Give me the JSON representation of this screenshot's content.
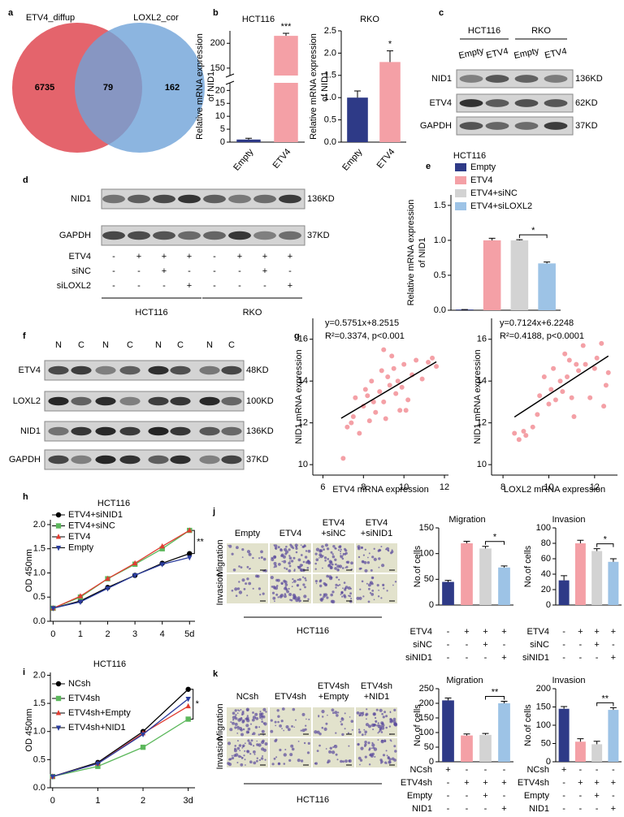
{
  "letters": [
    "a",
    "b",
    "c",
    "d",
    "e",
    "f",
    "g",
    "h",
    "i",
    "j",
    "k"
  ],
  "venn": {
    "sets": [
      "ETV4_diffup",
      "LOXL2_cor"
    ],
    "counts": [
      6735,
      79,
      162
    ]
  },
  "blots": [
    {
      "cell_lines": [
        "HCT116",
        "RKO"
      ],
      "lanes": [
        "Empty",
        "ETV4",
        "Empty",
        "ETV4"
      ],
      "proteins": [
        "NID1",
        "ETV4",
        "GAPDH"
      ],
      "sizes": [
        "136KD",
        "62KD",
        "37KD"
      ]
    },
    {
      "proteins": [
        "NID1",
        "GAPDH"
      ],
      "sizes": [
        "136KD",
        "37KD"
      ],
      "conditions": [
        {
          "name": "ETV4",
          "signs": [
            "-",
            "+",
            "+",
            "+",
            "-",
            "+",
            "+",
            "+"
          ]
        },
        {
          "name": "siNC",
          "signs": [
            "-",
            "-",
            "+",
            "-",
            "-",
            "-",
            "+",
            "-"
          ]
        },
        {
          "name": "siLOXL2",
          "signs": [
            "-",
            "-",
            "-",
            "+",
            "-",
            "-",
            "-",
            "+"
          ]
        }
      ],
      "cell_lines": [
        "HCT116",
        "RKO"
      ]
    },
    {
      "lanes": [
        "N",
        "C",
        "N",
        "C",
        "N",
        "C",
        "N",
        "C"
      ],
      "proteins": [
        "ETV4",
        "LOXL2",
        "NID1",
        "GAPDH"
      ],
      "sizes": [
        "48KD",
        "100KD",
        "136KD",
        "37KD"
      ]
    }
  ],
  "micrographs": [
    {
      "columns": [
        [
          "Empty"
        ],
        [
          "ETV4"
        ],
        [
          "ETV4",
          "+siNC"
        ],
        [
          "ETV4",
          "+siNID1"
        ]
      ],
      "rows": [
        "Migration",
        "Invasion"
      ],
      "cell_line": "HCT116"
    },
    {
      "columns": [
        [
          "NCsh"
        ],
        [
          "ETV4sh"
        ],
        [
          "ETV4sh",
          "+Empty"
        ],
        [
          "ETV4sh",
          "+NID1"
        ]
      ],
      "rows": [
        "Migration",
        "Invasion"
      ],
      "cell_line": "HCT116"
    }
  ],
  "chart_data": [
    {
      "type": "bar",
      "title": "HCT116",
      "ylabel": [
        "Relative mRNA expression",
        "of NID1"
      ],
      "categories": [
        "Empty",
        "ETV4"
      ],
      "values": [
        1,
        215
      ],
      "errors": [
        0.5,
        5
      ],
      "colors": [
        "#2e3a87",
        "#f4a0a6"
      ],
      "ylim": [
        0,
        225
      ],
      "yticks": [
        0,
        5,
        10,
        15,
        20,
        150,
        200
      ],
      "axis_break": [
        22,
        140
      ],
      "significance": [
        {
          "label": "***",
          "bars": [
            1
          ]
        }
      ]
    },
    {
      "type": "bar",
      "title": "RKO",
      "ylabel": [
        "Relative mRNA expression",
        "of NID1"
      ],
      "categories": [
        "Empty",
        "ETV4"
      ],
      "values": [
        1.0,
        1.8
      ],
      "errors": [
        0.15,
        0.25
      ],
      "colors": [
        "#2e3a87",
        "#f4a0a6"
      ],
      "ylim": [
        0,
        2.5
      ],
      "yticks": [
        {
          "value": 0,
          "label": "0.0"
        },
        0.5,
        {
          "value": 1,
          "label": "1.0"
        },
        1.5,
        {
          "value": 2,
          "label": "2.0"
        },
        2.5
      ],
      "significance": [
        {
          "label": "*",
          "bars": [
            1
          ]
        }
      ]
    },
    {
      "type": "bar",
      "title": "HCT116",
      "ylabel": [
        "Relative mRNA expression",
        "of NID1"
      ],
      "categories": [
        "Empty",
        "ETV4",
        "ETV4+siNC",
        "ETV4+siLOXL2"
      ],
      "legend": true,
      "values": [
        0.01,
        1.0,
        1.0,
        0.67
      ],
      "errors": [
        0,
        0.03,
        0.01,
        0.02
      ],
      "colors": [
        "#2e3a87",
        "#f4a0a6",
        "#d3d3d3",
        "#9dc3e6"
      ],
      "ylim": [
        0,
        1.65
      ],
      "yticks": [
        {
          "value": 0,
          "label": "0.0"
        },
        0.5,
        {
          "value": 1,
          "label": "1.0"
        },
        1.5
      ],
      "significance": [
        {
          "label": "*",
          "bars": [
            2,
            3
          ]
        }
      ]
    },
    {
      "type": "scatter",
      "xlabel": "ETV4 mRNA expression",
      "ylabel": "NID1 mRNA expression",
      "annotations": [
        "y=0.5751x+8.2515",
        "R²=0.3374, p<0.001"
      ],
      "x": [
        7.0,
        7.2,
        7.5,
        7.6,
        7.8,
        8.0,
        8.1,
        8.3,
        8.4,
        8.5,
        8.6,
        8.8,
        8.9,
        9.0,
        9.1,
        9.2,
        9.3,
        9.4,
        9.5,
        9.6,
        9.7,
        9.8,
        9.9,
        10.0,
        10.2,
        10.4,
        10.6,
        10.9,
        11.2,
        11.4,
        11.6,
        8.2,
        9.0,
        7.4,
        10.1
      ],
      "values": [
        10.3,
        11.8,
        12.3,
        13.2,
        11.5,
        12.8,
        13.6,
        12.1,
        14.0,
        13.0,
        12.5,
        13.5,
        14.5,
        13.0,
        12.2,
        14.2,
        13.8,
        15.2,
        14.6,
        13.4,
        14.0,
        12.6,
        13.7,
        14.8,
        13.1,
        14.3,
        15.0,
        14.1,
        14.9,
        15.1,
        14.7,
        13.3,
        15.5,
        12.0,
        12.6
      ],
      "fit_x": [
        6.9,
        11.6
      ],
      "fit_y": [
        12.22,
        14.92
      ],
      "color": "#f4a0a6",
      "xlim": [
        5.5,
        12.2
      ],
      "xticks": [
        6,
        8,
        10,
        12
      ],
      "ylim": [
        9.5,
        17
      ],
      "yticks": [
        10,
        12,
        14,
        16
      ]
    },
    {
      "type": "scatter",
      "xlabel": "LOXL2 mRNA expression",
      "ylabel": "NID1 mRNA expression",
      "annotations": [
        "y=0.7124x+6.2248",
        "R²=0.4188, p<0.0001"
      ],
      "x": [
        8.5,
        8.7,
        8.9,
        9.0,
        9.3,
        9.5,
        9.6,
        9.8,
        10.0,
        10.1,
        10.2,
        10.3,
        10.5,
        10.6,
        10.7,
        10.8,
        11.0,
        11.1,
        11.2,
        11.3,
        11.5,
        11.6,
        11.8,
        12.0,
        12.1,
        12.3,
        12.5,
        12.6,
        12.4,
        10.9
      ],
      "values": [
        11.5,
        11.2,
        11.6,
        11.4,
        11.8,
        12.4,
        13.3,
        14.2,
        12.9,
        13.6,
        14.6,
        13.1,
        14.0,
        13.5,
        15.3,
        14.2,
        13.2,
        12.3,
        14.8,
        14.5,
        15.7,
        14.8,
        13.2,
        14.6,
        15.1,
        15.8,
        13.8,
        14.4,
        12.8,
        15.0
      ],
      "fit_x": [
        8.5,
        12.6
      ],
      "fit_y": [
        12.28,
        15.2
      ],
      "color": "#f4a0a6",
      "xlim": [
        7.5,
        13
      ],
      "xticks": [
        8,
        10,
        12
      ],
      "ylim": [
        9.5,
        17
      ],
      "yticks": [
        10,
        12,
        14,
        16
      ]
    },
    {
      "type": "line",
      "title": "HCT116",
      "ylabel": "OD 450nm",
      "x": [
        0,
        1,
        2,
        3,
        4,
        5
      ],
      "xlim": [
        -0.1,
        5.2
      ],
      "xticks": [
        0,
        1,
        2,
        3,
        4,
        {
          "value": 5,
          "label": "5d"
        }
      ],
      "ylim": [
        0,
        2.1
      ],
      "yticks": [
        {
          "value": 0,
          "label": "0.0"
        },
        0.5,
        {
          "value": 1,
          "label": "1.0"
        },
        1.5,
        {
          "value": 2,
          "label": "2.0"
        }
      ],
      "series": [
        {
          "name": "ETV4+siNID1",
          "color": "#000000",
          "marker": "circle",
          "values": [
            0.27,
            0.42,
            0.7,
            0.95,
            1.2,
            1.4
          ]
        },
        {
          "name": "ETV4+siNC",
          "color": "#5cb85c",
          "marker": "square",
          "values": [
            0.27,
            0.5,
            0.88,
            1.18,
            1.5,
            1.88
          ]
        },
        {
          "name": "ETV4",
          "color": "#e03c31",
          "marker": "triangle",
          "values": [
            0.27,
            0.52,
            0.88,
            1.2,
            1.55,
            1.88
          ]
        },
        {
          "name": "Empty",
          "color": "#2b3d9e",
          "marker": "triangle-down",
          "values": [
            0.27,
            0.4,
            0.68,
            0.95,
            1.18,
            1.32
          ]
        }
      ],
      "significance": [
        {
          "label": "**",
          "series": [
            0,
            2
          ]
        }
      ]
    },
    {
      "type": "line",
      "title": "HCT116",
      "ylabel": "OD 450nm",
      "x": [
        0,
        1,
        2,
        3
      ],
      "xlim": [
        -0.05,
        3.15
      ],
      "xticks": [
        0,
        1,
        2,
        {
          "value": 3,
          "label": "3d"
        }
      ],
      "ylim": [
        0,
        2.05
      ],
      "yticks": [
        {
          "value": 0,
          "label": "0.0"
        },
        0.5,
        {
          "value": 1,
          "label": "1.0"
        },
        1.5,
        {
          "value": 2,
          "label": "2.0"
        }
      ],
      "series": [
        {
          "name": "NCsh",
          "color": "#000000",
          "marker": "circle",
          "values": [
            0.2,
            0.45,
            1.0,
            1.75
          ]
        },
        {
          "name": "ETV4sh",
          "color": "#5cb85c",
          "marker": "square",
          "values": [
            0.2,
            0.38,
            0.72,
            1.22
          ]
        },
        {
          "name": "ETV4sh+Empty",
          "color": "#e03c31",
          "marker": "triangle",
          "values": [
            0.2,
            0.43,
            0.97,
            1.45
          ]
        },
        {
          "name": "ETV4sh+NID1",
          "color": "#2b3d9e",
          "marker": "triangle-down",
          "values": [
            0.2,
            0.43,
            0.95,
            1.58
          ]
        }
      ],
      "significance": [
        {
          "label": "*",
          "series": [
            0,
            1
          ]
        }
      ]
    },
    {
      "type": "bar",
      "title": "Migration",
      "ylabel": [
        "No.of cells"
      ],
      "conditions": [
        {
          "name": "ETV4",
          "signs": [
            "-",
            "+",
            "+",
            "+"
          ]
        },
        {
          "name": "siNC",
          "signs": [
            "-",
            "-",
            "+",
            "-"
          ]
        },
        {
          "name": "siNID1",
          "signs": [
            "-",
            "-",
            "-",
            "+"
          ]
        }
      ],
      "values": [
        45,
        120,
        110,
        73
      ],
      "errors": [
        3,
        4,
        4,
        3
      ],
      "colors": [
        "#2e3a87",
        "#f4a0a6",
        "#d3d3d3",
        "#9dc3e6"
      ],
      "ylim": [
        0,
        150
      ],
      "yticks": [
        0,
        50,
        100,
        150
      ],
      "significance": [
        {
          "label": "*",
          "bars": [
            2,
            3
          ]
        }
      ]
    },
    {
      "type": "bar",
      "title": "Invasion",
      "ylabel": [
        "No.of cells"
      ],
      "conditions": [
        {
          "name": "ETV4",
          "signs": [
            "-",
            "+",
            "+",
            "+"
          ]
        },
        {
          "name": "siNC",
          "signs": [
            "-",
            "-",
            "+",
            "-"
          ]
        },
        {
          "name": "siNID1",
          "signs": [
            "-",
            "-",
            "-",
            "+"
          ]
        }
      ],
      "values": [
        32,
        80,
        70,
        56
      ],
      "errors": [
        6,
        4,
        3,
        4
      ],
      "colors": [
        "#2e3a87",
        "#f4a0a6",
        "#d3d3d3",
        "#9dc3e6"
      ],
      "ylim": [
        0,
        100
      ],
      "yticks": [
        0,
        20,
        40,
        60,
        80,
        100
      ],
      "significance": [
        {
          "label": "*",
          "bars": [
            2,
            3
          ]
        }
      ]
    },
    {
      "type": "bar",
      "title": "Migration",
      "ylabel": [
        "No.of cells"
      ],
      "conditions": [
        {
          "name": "NCsh",
          "signs": [
            "+",
            "-",
            "-",
            "-"
          ]
        },
        {
          "name": "ETV4sh",
          "signs": [
            "-",
            "+",
            "+",
            "+"
          ]
        },
        {
          "name": "Empty",
          "signs": [
            "-",
            "-",
            "+",
            "-"
          ]
        },
        {
          "name": "NID1",
          "signs": [
            "-",
            "-",
            "-",
            "+"
          ]
        }
      ],
      "values": [
        210,
        90,
        92,
        200
      ],
      "errors": [
        8,
        5,
        5,
        7
      ],
      "colors": [
        "#2e3a87",
        "#f4a0a6",
        "#d3d3d3",
        "#9dc3e6"
      ],
      "ylim": [
        0,
        250
      ],
      "yticks": [
        0,
        50,
        100,
        150,
        200,
        250
      ],
      "significance": [
        {
          "label": "**",
          "bars": [
            2,
            3
          ]
        }
      ]
    },
    {
      "type": "bar",
      "title": "Invasion",
      "ylabel": [
        "No.of cells"
      ],
      "conditions": [
        {
          "name": "NCsh",
          "signs": [
            "+",
            "-",
            "-",
            "-"
          ]
        },
        {
          "name": "ETV4sh",
          "signs": [
            "-",
            "+",
            "+",
            "+"
          ]
        },
        {
          "name": "Empty",
          "signs": [
            "-",
            "-",
            "+",
            "-"
          ]
        },
        {
          "name": "NID1",
          "signs": [
            "-",
            "-",
            "-",
            "+"
          ]
        }
      ],
      "values": [
        145,
        55,
        48,
        142
      ],
      "errors": [
        6,
        8,
        8,
        6
      ],
      "colors": [
        "#2e3a87",
        "#f4a0a6",
        "#d3d3d3",
        "#9dc3e6"
      ],
      "ylim": [
        0,
        200
      ],
      "yticks": [
        0,
        50,
        100,
        150,
        200
      ],
      "significance": [
        {
          "label": "**",
          "bars": [
            2,
            3
          ]
        }
      ]
    }
  ]
}
